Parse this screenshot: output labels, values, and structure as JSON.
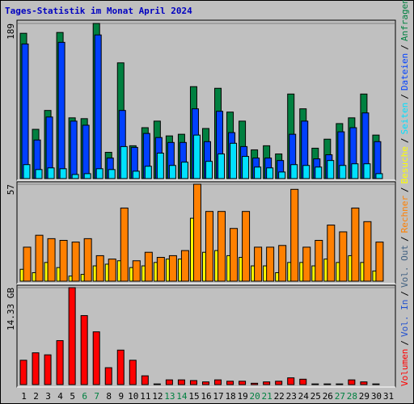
{
  "title": "Tages-Statistik im Monat April 2024",
  "legend_separator": "/",
  "chart_data": [
    {
      "type": "bar",
      "ylim": [
        0,
        189
      ],
      "yticks": [
        189
      ],
      "series": [
        {
          "name": "Seiten",
          "color": "#00e0ff",
          "values": [
            17,
            11,
            13,
            12,
            5,
            6,
            12,
            11,
            39,
            9,
            15,
            31,
            16,
            20,
            53,
            21,
            30,
            43,
            27,
            14,
            13,
            8,
            17,
            16,
            14,
            22,
            16,
            18,
            18,
            6,
            0
          ]
        },
        {
          "name": "Dateien",
          "color": "#0040ff",
          "values": [
            164,
            47,
            75,
            166,
            70,
            65,
            175,
            25,
            83,
            38,
            55,
            50,
            44,
            44,
            85,
            45,
            82,
            56,
            39,
            25,
            25,
            22,
            54,
            70,
            24,
            29,
            57,
            62,
            80,
            45,
            0
          ]
        },
        {
          "name": "Anfragen",
          "color": "#008040",
          "values": [
            177,
            60,
            83,
            178,
            74,
            73,
            189,
            32,
            141,
            40,
            62,
            70,
            52,
            54,
            112,
            61,
            110,
            81,
            70,
            35,
            40,
            30,
            103,
            85,
            37,
            48,
            67,
            74,
            103,
            53,
            0
          ]
        }
      ]
    },
    {
      "type": "bar",
      "ylim": [
        0,
        57
      ],
      "yticks": [
        57
      ],
      "series": [
        {
          "name": "Rechner",
          "color": "#ff8000",
          "values": [
            20,
            27,
            25,
            24,
            23,
            25,
            15,
            13,
            43,
            12,
            17,
            14,
            15,
            18,
            57,
            41,
            41,
            31,
            41,
            20,
            20,
            21,
            54,
            20,
            24,
            33,
            29,
            43,
            35,
            23,
            0
          ]
        },
        {
          "name": "Besuche",
          "color": "#ffff00",
          "values": [
            7,
            5,
            11,
            8,
            3,
            4,
            9,
            10,
            12,
            8,
            9,
            11,
            13,
            13,
            37,
            17,
            18,
            15,
            14,
            9,
            9,
            5,
            11,
            11,
            9,
            13,
            11,
            15,
            11,
            6,
            0
          ]
        }
      ]
    },
    {
      "type": "bar",
      "ylim": [
        0,
        14.33
      ],
      "yticks": [
        {
          "value": 14.33,
          "label": "14.33 GB"
        }
      ],
      "categories": [
        "1",
        "2",
        "3",
        "4",
        "5",
        "6",
        "7",
        "8",
        "9",
        "10",
        "11",
        "12",
        "13",
        "14",
        "15",
        "16",
        "17",
        "18",
        "19",
        "20",
        "21",
        "22",
        "23",
        "24",
        "25",
        "26",
        "27",
        "28",
        "29",
        "30",
        "31"
      ],
      "category_colors": [
        "#000000",
        "#000000",
        "#000000",
        "#000000",
        "#000000",
        "#008040",
        "#008040",
        "#000000",
        "#000000",
        "#000000",
        "#000000",
        "#000000",
        "#008040",
        "#008040",
        "#000000",
        "#000000",
        "#000000",
        "#000000",
        "#000000",
        "#008040",
        "#008040",
        "#000000",
        "#000000",
        "#000000",
        "#000000",
        "#000000",
        "#008040",
        "#008040",
        "#000000",
        "#000000",
        "#000000"
      ],
      "series": [
        {
          "name": "Volumen",
          "color": "#ff0000",
          "values": [
            3.6,
            4.7,
            4.4,
            6.5,
            14.33,
            10.2,
            7.8,
            2.5,
            5.1,
            3.6,
            1.3,
            0.1,
            0.7,
            0.7,
            0.6,
            0.4,
            0.7,
            0.5,
            0.5,
            0.2,
            0.4,
            0.5,
            1.0,
            0.8,
            0.1,
            0.1,
            0.1,
            0.7,
            0.4,
            0.1,
            0
          ]
        }
      ],
      "extra_legend": [
        {
          "name": "Vol. In",
          "color": "#2050d0"
        },
        {
          "name": "Vol. Out",
          "color": "#406080"
        }
      ]
    }
  ]
}
